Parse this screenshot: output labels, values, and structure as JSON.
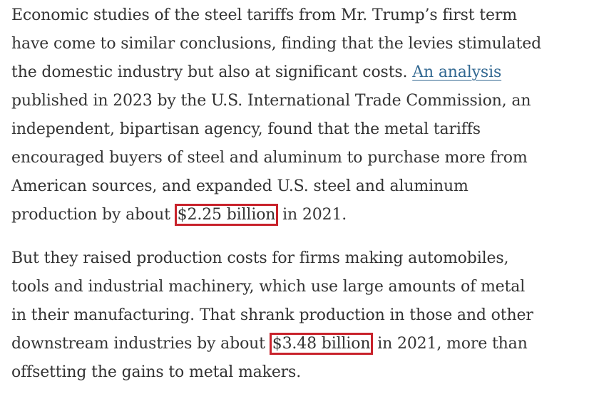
{
  "article": {
    "p1": {
      "l1": "Economic studies of the steel tariffs from Mr. Trump’s first term",
      "l2": "have come to similar conclusions, finding that the levies stimulated",
      "l3_pre": "the domestic industry but also at significant costs. ",
      "l3_link": "An analysis",
      "l4": "published in 2023 by the U.S. International Trade Commission, an",
      "l5": "independent, bipartisan agency, found that the metal tariffs",
      "l6": "encouraged buyers of steel and aluminum to purchase more from",
      "l7": "American sources, and expanded U.S. steel and aluminum",
      "l8_pre": "production by about ",
      "l8_highlight": "$2.25 billion",
      "l8_post": " in 2021."
    },
    "p2": {
      "l1": "But they raised production costs for firms making automobiles,",
      "l2": "tools and industrial machinery, which use large amounts of metal",
      "l3": "in their manufacturing. That shrank production in those and other",
      "l4_pre": "downstream industries by about ",
      "l4_highlight": "$3.48 billion",
      "l4_post": " in 2021, more than",
      "l5": "offsetting the gains to metal makers."
    },
    "colors": {
      "text": "#333333",
      "link": "#326891",
      "highlight_box": "#c8222b"
    }
  }
}
